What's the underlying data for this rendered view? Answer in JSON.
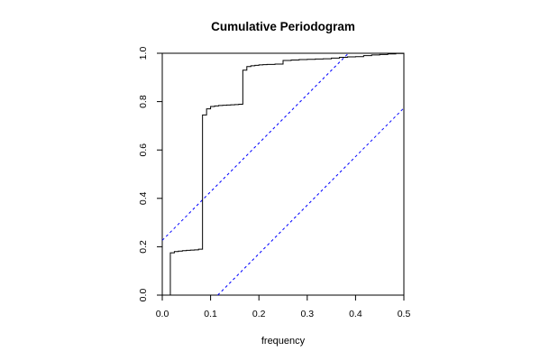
{
  "chart_data": {
    "type": "line",
    "title": "Cumulative Periodogram",
    "xlabel": "frequency",
    "ylabel": "",
    "xlim": [
      0,
      0.5
    ],
    "ylim": [
      0,
      1
    ],
    "x_ticks": [
      "0.0",
      "0.1",
      "0.2",
      "0.3",
      "0.4",
      "0.5"
    ],
    "y_ticks": [
      "0.0",
      "0.2",
      "0.4",
      "0.6",
      "0.8",
      "1.0"
    ],
    "grid": false,
    "series": [
      {
        "style": "step",
        "color": "#000000",
        "x": [
          0.0167,
          0.0167,
          0.025,
          0.0333,
          0.0417,
          0.05,
          0.0583,
          0.0667,
          0.075,
          0.0833,
          0.0917,
          0.1,
          0.1083,
          0.1167,
          0.125,
          0.1333,
          0.1417,
          0.15,
          0.1583,
          0.1667,
          0.175,
          0.1833,
          0.1917,
          0.2,
          0.2083,
          0.2167,
          0.2333,
          0.25,
          0.2667,
          0.2833,
          0.3,
          0.3167,
          0.3333,
          0.35,
          0.3667,
          0.3833,
          0.4,
          0.4167,
          0.4333,
          0.45,
          0.4667,
          0.4833,
          0.5
        ],
        "y": [
          0.0,
          0.175,
          0.18,
          0.182,
          0.184,
          0.185,
          0.186,
          0.187,
          0.19,
          0.745,
          0.77,
          0.78,
          0.782,
          0.784,
          0.785,
          0.786,
          0.787,
          0.788,
          0.789,
          0.93,
          0.945,
          0.948,
          0.95,
          0.952,
          0.953,
          0.954,
          0.955,
          0.97,
          0.972,
          0.974,
          0.975,
          0.976,
          0.977,
          0.98,
          0.983,
          0.985,
          0.986,
          0.99,
          0.993,
          0.995,
          0.997,
          0.999,
          1.0
        ]
      }
    ],
    "bounds": [
      {
        "style": "dashed",
        "color": "#0000ff",
        "x": [
          0.0,
          0.3852
        ],
        "y": [
          0.2265,
          1.0
        ]
      },
      {
        "style": "dashed",
        "color": "#0000ff",
        "x": [
          0.1148,
          0.5
        ],
        "y": [
          0.0,
          0.7735
        ]
      }
    ]
  }
}
